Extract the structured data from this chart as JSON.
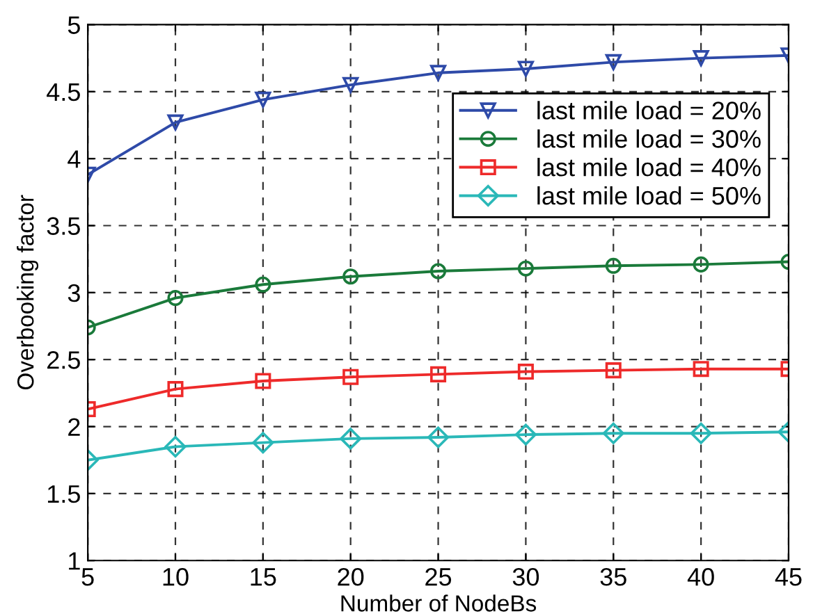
{
  "chart_data": {
    "type": "line",
    "xlabel": "Number of NodeBs",
    "ylabel": "Overbooking factor",
    "x": [
      5,
      10,
      15,
      20,
      25,
      30,
      35,
      40,
      45
    ],
    "series": [
      {
        "name": "last mile load = 20%",
        "color": "#2e4aa8",
        "marker": "triangle",
        "values": [
          3.88,
          4.27,
          4.44,
          4.55,
          4.64,
          4.67,
          4.72,
          4.75,
          4.77
        ]
      },
      {
        "name": "last mile load = 30%",
        "color": "#1a7a3a",
        "marker": "circle",
        "values": [
          2.74,
          2.96,
          3.06,
          3.12,
          3.16,
          3.18,
          3.2,
          3.21,
          3.23
        ]
      },
      {
        "name": "last mile load = 40%",
        "color": "#ee2a2a",
        "marker": "square",
        "values": [
          2.13,
          2.28,
          2.34,
          2.37,
          2.39,
          2.41,
          2.42,
          2.43,
          2.43
        ]
      },
      {
        "name": "last mile load = 50%",
        "color": "#2ab8b8",
        "marker": "diamond",
        "values": [
          1.75,
          1.85,
          1.88,
          1.91,
          1.92,
          1.94,
          1.95,
          1.95,
          1.96
        ]
      }
    ],
    "xlim": [
      5,
      45
    ],
    "xticks": [
      5,
      10,
      15,
      20,
      25,
      30,
      35,
      40,
      45
    ],
    "ylim": [
      1,
      5
    ],
    "yticks": [
      1,
      1.5,
      2,
      2.5,
      3,
      3.5,
      4,
      4.5,
      5
    ],
    "grid": true,
    "legend": "top right",
    "line_style": "solid"
  }
}
